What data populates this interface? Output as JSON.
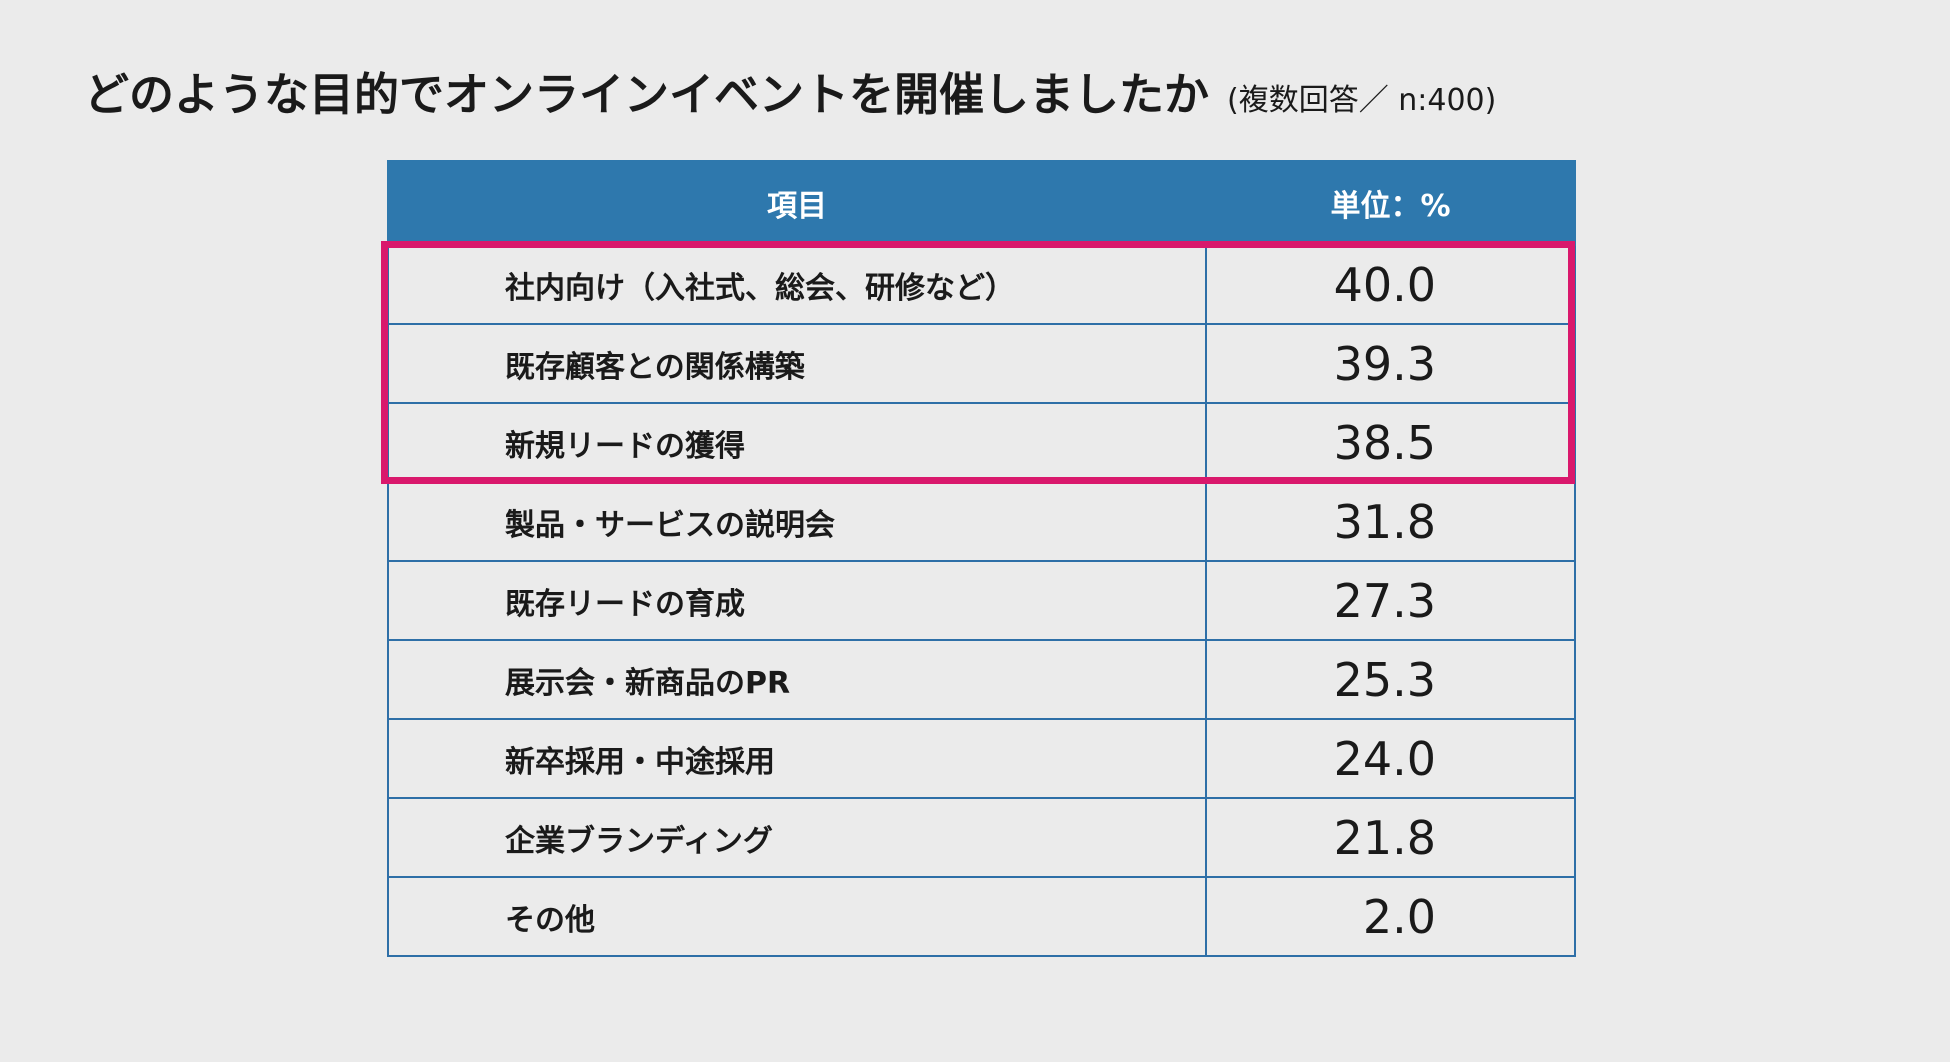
{
  "title": {
    "main": "どのような目的でオンラインイベントを開催しましたか",
    "note": "(複数回答／ n:400)"
  },
  "colors": {
    "header_bg": "#2e78ad",
    "border": "#2e6fa7",
    "highlight": "#d9186c",
    "background": "#ebebeb"
  },
  "chart_data": {
    "type": "table",
    "title": "どのような目的でオンラインイベントを開催しましたか",
    "subtitle": "(複数回答／ n:400)",
    "columns": [
      "項目",
      "単位：%"
    ],
    "rows": [
      {
        "item": "社内向け（入社式、総会、研修など）",
        "value": "40.0"
      },
      {
        "item": "既存顧客との関係構築",
        "value": "39.3"
      },
      {
        "item": "新規リードの獲得",
        "value": "38.5"
      },
      {
        "item": "製品・サービスの説明会",
        "value": "31.8"
      },
      {
        "item": "既存リードの育成",
        "value": "27.3"
      },
      {
        "item": "展示会・新商品のPR",
        "value": "25.3"
      },
      {
        "item": "新卒採用・中途採用",
        "value": "24.0"
      },
      {
        "item": "企業ブランディング",
        "value": "21.8"
      },
      {
        "item": "その他",
        "value": "2.0"
      }
    ],
    "highlighted_rows": [
      0,
      1,
      2
    ]
  }
}
